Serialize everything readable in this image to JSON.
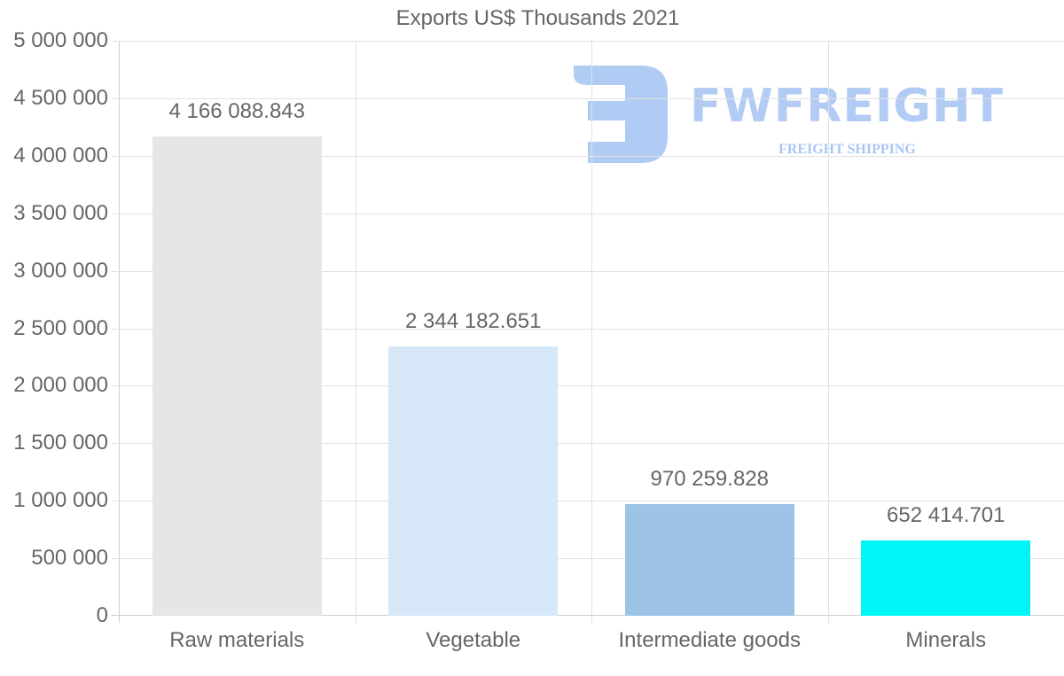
{
  "chart_data": {
    "type": "bar",
    "title": "Exports US$ Thousands 2021",
    "xlabel": "",
    "ylabel": "",
    "categories": [
      "Raw materials",
      "Vegetable",
      "Intermediate goods",
      "Minerals"
    ],
    "values": [
      4166088.843,
      2344182.651,
      970259.828,
      652414.701
    ],
    "value_labels": [
      "4 166 088.843",
      "2 344 182.651",
      "970 259.828",
      "652 414.701"
    ],
    "colors": [
      "#e6e6e6",
      "#d6e7f8",
      "#9cc3e6",
      "#00f6f6"
    ],
    "ylim": [
      0,
      5000000
    ],
    "yticks": [
      0,
      500000,
      1000000,
      1500000,
      2000000,
      2500000,
      3000000,
      3500000,
      4000000,
      4500000,
      5000000
    ],
    "ytick_labels": [
      "0",
      "500 000",
      "1 000 000",
      "1 500 000",
      "2 000 000",
      "2 500 000",
      "3 000 000",
      "3 500 000",
      "4 000 000",
      "4 500 000",
      "5 000 000"
    ],
    "grid": true,
    "legend": null
  },
  "watermark": {
    "brand": "FWFREIGHT",
    "tagline": "FREIGHT SHIPPING",
    "color": "#a9c6f3"
  }
}
